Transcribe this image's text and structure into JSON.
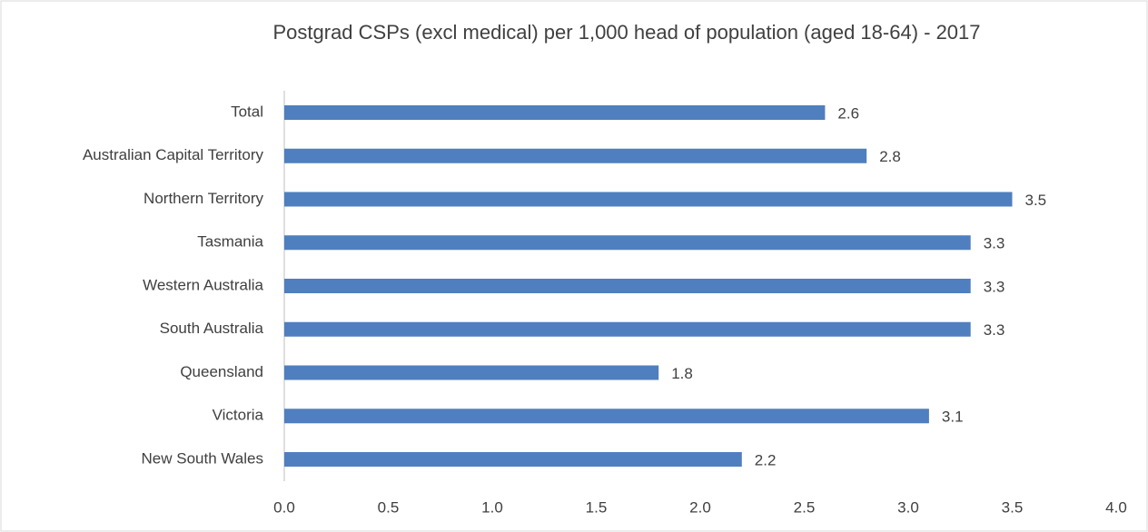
{
  "chart_data": {
    "type": "bar",
    "orientation": "horizontal",
    "title": "Postgrad CSPs (excl medical) per 1,000 head of population (aged 18-64) - 2017",
    "categories": [
      "Total",
      "Australian Capital Territory",
      "Northern Territory",
      "Tasmania",
      "Western Australia",
      "South Australia",
      "Queensland",
      "Victoria",
      "New South Wales"
    ],
    "values": [
      2.6,
      2.8,
      3.5,
      3.3,
      3.3,
      3.3,
      1.8,
      3.1,
      2.2
    ],
    "color": "#4f7fbe",
    "xlim": [
      0,
      4
    ],
    "xticks": [
      {
        "value": 0,
        "label": "0.0"
      },
      0.5,
      {
        "value": 1,
        "label": "1.0"
      },
      1.5,
      {
        "value": 2,
        "label": "2.0"
      },
      2.5,
      {
        "value": 3,
        "label": "3.0"
      },
      3.5,
      {
        "value": 4,
        "label": "4.0"
      }
    ],
    "grid": false
  }
}
